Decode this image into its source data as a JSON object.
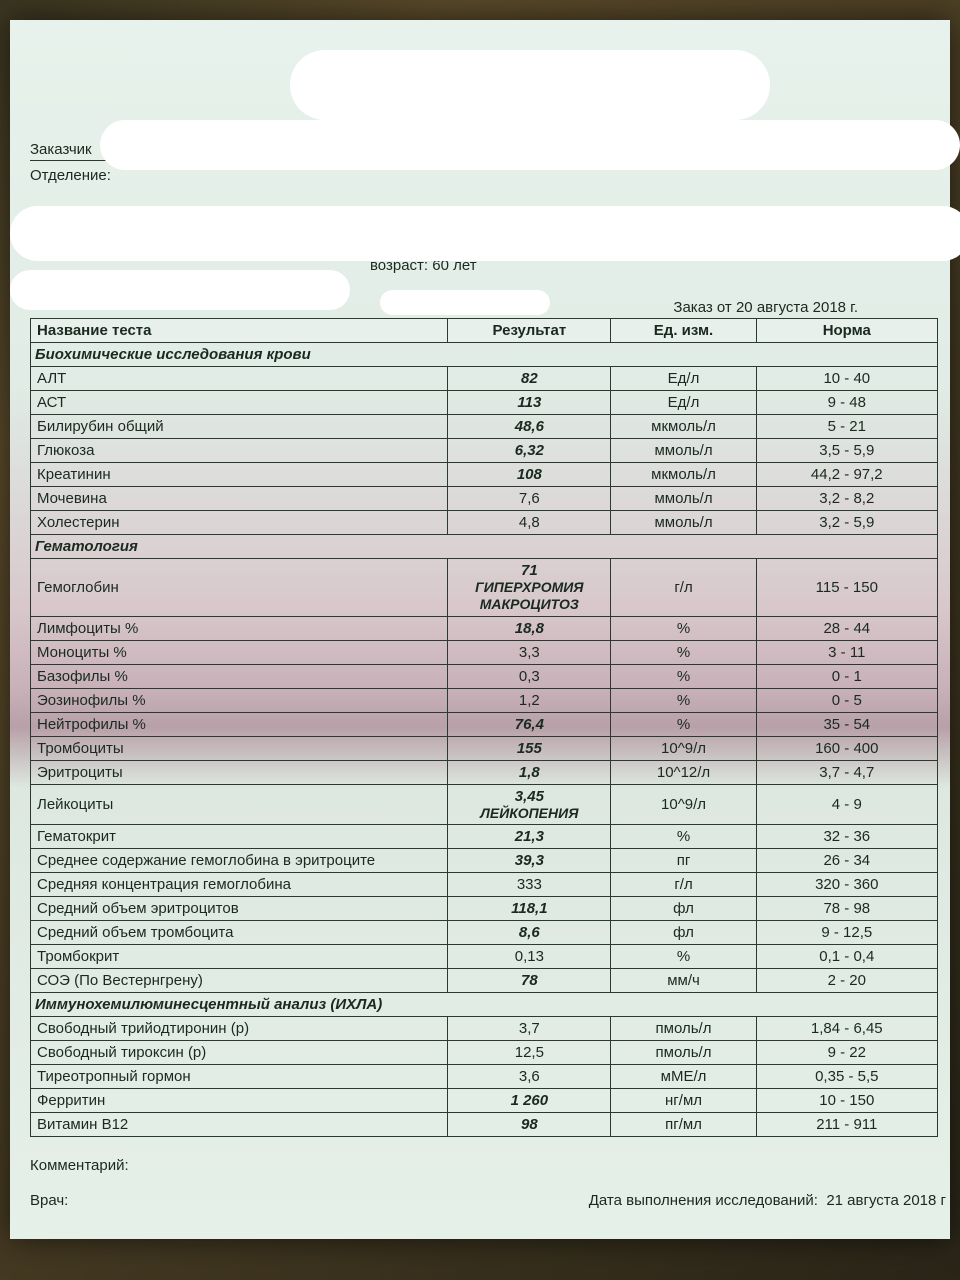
{
  "header": {
    "customer_label": "Заказчик",
    "dept_label": "Отделение:",
    "age_label": "возраст: 60 лет",
    "order_date": "Заказ от 20 августа 2018 г."
  },
  "columns": {
    "name": "Название теста",
    "result": "Результат",
    "unit": "Ед. изм.",
    "norm": "Норма"
  },
  "sections": [
    {
      "title": "Биохимические исследования крови",
      "rows": [
        {
          "name": "АЛТ",
          "res": "82",
          "res_bold": true,
          "unit": "Ед/л",
          "norm": "10 - 40"
        },
        {
          "name": "АСТ",
          "res": "113",
          "res_bold": true,
          "unit": "Ед/л",
          "norm": "9 - 48"
        },
        {
          "name": "Билирубин общий",
          "res": "48,6",
          "res_bold": true,
          "unit": "мкмоль/л",
          "norm": "5 - 21"
        },
        {
          "name": "Глюкоза",
          "res": "6,32",
          "res_bold": true,
          "unit": "ммоль/л",
          "norm": "3,5 - 5,9"
        },
        {
          "name": "Креатинин",
          "res": "108",
          "res_bold": true,
          "unit": "мкмоль/л",
          "norm": "44,2 - 97,2"
        },
        {
          "name": "Мочевина",
          "res": "7,6",
          "res_bold": false,
          "unit": "ммоль/л",
          "norm": "3,2 - 8,2"
        },
        {
          "name": "Холестерин",
          "res": "4,8",
          "res_bold": false,
          "unit": "ммоль/л",
          "norm": "3,2 - 5,9"
        }
      ]
    },
    {
      "title": "Гематология",
      "rows": [
        {
          "name": "Гемоглобин",
          "res": "71",
          "res_bold": true,
          "res_sub": "ГИПЕРХРОМИЯ МАКРОЦИТОЗ",
          "unit": "г/л",
          "norm": "115 - 150"
        },
        {
          "name": "Лимфоциты %",
          "res": "18,8",
          "res_bold": true,
          "unit": "%",
          "norm": "28 - 44"
        },
        {
          "name": "Моноциты %",
          "res": "3,3",
          "res_bold": false,
          "unit": "%",
          "norm": "3 - 11"
        },
        {
          "name": "Базофилы %",
          "res": "0,3",
          "res_bold": false,
          "unit": "%",
          "norm": "0 - 1"
        },
        {
          "name": "Эозинофилы %",
          "res": "1,2",
          "res_bold": false,
          "unit": "%",
          "norm": "0 - 5"
        },
        {
          "name": "Нейтрофилы %",
          "res": "76,4",
          "res_bold": true,
          "unit": "%",
          "norm": "35 - 54"
        },
        {
          "name": "Тромбоциты",
          "res": "155",
          "res_bold": true,
          "unit": "10^9/л",
          "norm": "160 - 400"
        },
        {
          "name": "Эритроциты",
          "res": "1,8",
          "res_bold": true,
          "unit": "10^12/л",
          "norm": "3,7 - 4,7"
        },
        {
          "name": "Лейкоциты",
          "res": "3,45",
          "res_bold": true,
          "res_sub": "ЛЕЙКОПЕНИЯ",
          "unit": "10^9/л",
          "norm": "4 - 9"
        },
        {
          "name": "Гематокрит",
          "res": "21,3",
          "res_bold": true,
          "unit": "%",
          "norm": "32 - 36"
        },
        {
          "name": "Среднее содержание гемоглобина в эритроците",
          "res": "39,3",
          "res_bold": true,
          "unit": "пг",
          "norm": "26 - 34"
        },
        {
          "name": "Средняя концентрация гемоглобина",
          "res": "333",
          "res_bold": false,
          "unit": "г/л",
          "norm": "320 - 360"
        },
        {
          "name": "Средний объем эритроцитов",
          "res": "118,1",
          "res_bold": true,
          "unit": "фл",
          "norm": "78 - 98"
        },
        {
          "name": "Средний объем тромбоцита",
          "res": "8,6",
          "res_bold": true,
          "unit": "фл",
          "norm": "9 - 12,5"
        },
        {
          "name": "Тромбокрит",
          "res": "0,13",
          "res_bold": false,
          "unit": "%",
          "norm": "0,1 - 0,4"
        },
        {
          "name": "СОЭ (По Вестернгрену)",
          "res": "78",
          "res_bold": true,
          "unit": "мм/ч",
          "norm": "2 - 20"
        }
      ]
    },
    {
      "title": "Иммунохемилюминесцентный анализ (ИХЛА)",
      "rows": [
        {
          "name": "Свободный трийодтиронин (р)",
          "res": "3,7",
          "res_bold": false,
          "unit": "пмоль/л",
          "norm": "1,84 - 6,45"
        },
        {
          "name": "Свободный тироксин (р)",
          "res": "12,5",
          "res_bold": false,
          "unit": "пмоль/л",
          "norm": "9 - 22"
        },
        {
          "name": "Тиреотропный гормон",
          "res": "3,6",
          "res_bold": false,
          "unit": "мМЕ/л",
          "norm": "0,35 - 5,5"
        },
        {
          "name": "Ферритин",
          "res": "1 260",
          "res_bold": true,
          "unit": "нг/мл",
          "norm": "10 - 150"
        },
        {
          "name": "Витамин  B12",
          "res": "98",
          "res_bold": true,
          "unit": "пг/мл",
          "norm": "211 - 911"
        }
      ]
    }
  ],
  "footer": {
    "comment_label": "Комментарий:",
    "doctor_label": "Врач:",
    "exec_date_label": "Дата выполнения исследований:",
    "exec_date_value": "21 августа 2018 г"
  }
}
